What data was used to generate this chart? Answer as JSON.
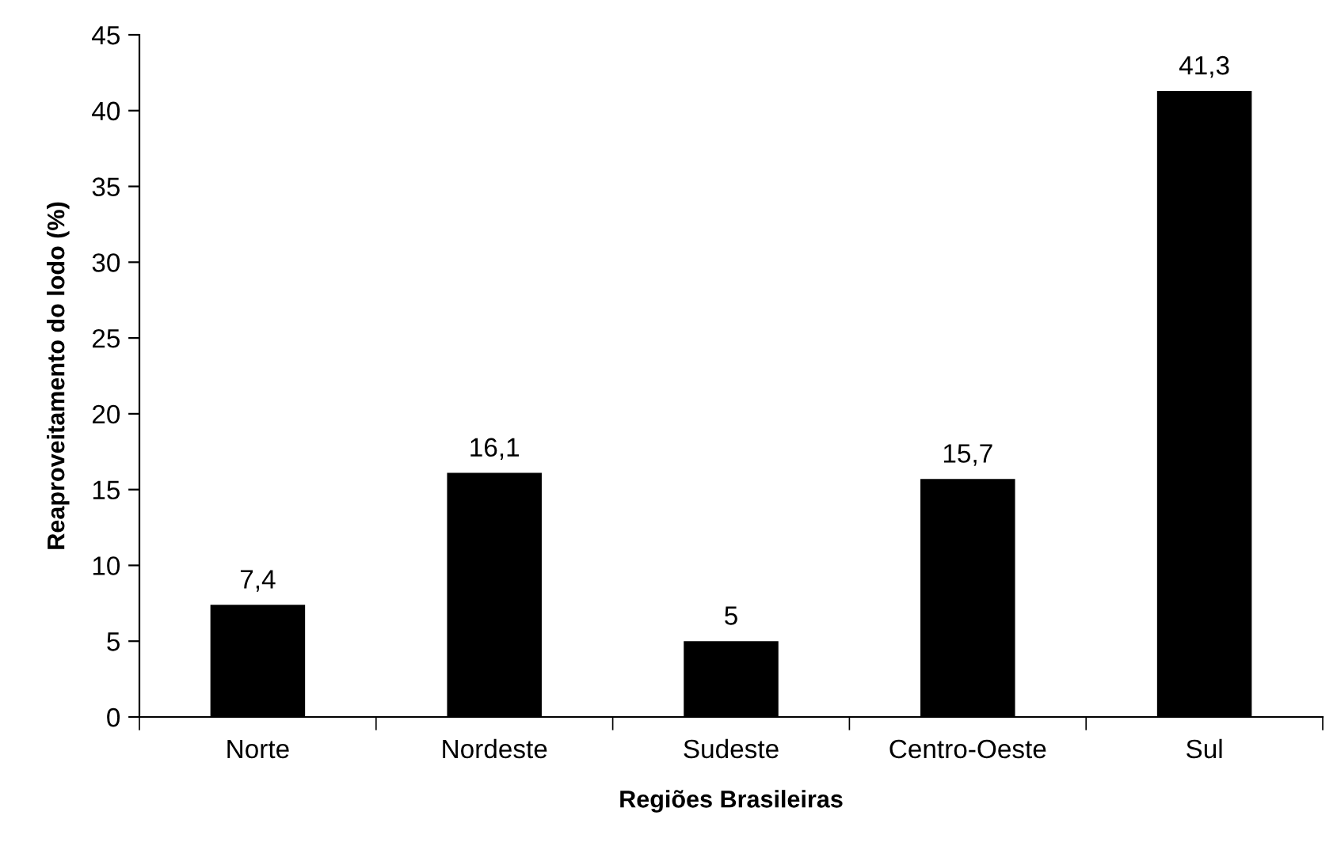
{
  "chart_data": {
    "type": "bar",
    "xlabel": "Regiões Brasileiras",
    "ylabel": "Reaproveitamento do lodo (%)",
    "categories": [
      "Norte",
      "Nordeste",
      "Sudeste",
      "Centro-Oeste",
      "Sul"
    ],
    "values": [
      7.4,
      16.1,
      5,
      15.7,
      41.3
    ],
    "value_labels": [
      "7,4",
      "16,1",
      "5",
      "15,7",
      "41,3"
    ],
    "color": "#000000",
    "ylim": [
      0,
      45
    ],
    "yticks": [
      0,
      5,
      10,
      15,
      20,
      25,
      30,
      35,
      40,
      45
    ],
    "grid": false,
    "legend": false
  }
}
